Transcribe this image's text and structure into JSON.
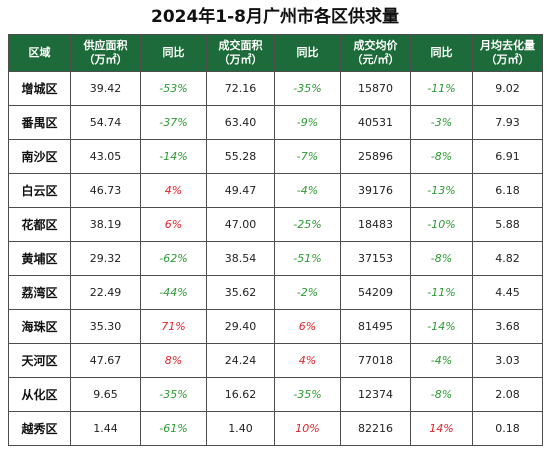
{
  "title": "2024年1-8月广州市各区供求量",
  "headers": [
    {
      "line1": "区域",
      "line2": ""
    },
    {
      "line1": "供应面积",
      "line2": "（万㎡）"
    },
    {
      "line1": "同比",
      "line2": ""
    },
    {
      "line1": "成交面积",
      "line2": "（万㎡）"
    },
    {
      "line1": "同比",
      "line2": ""
    },
    {
      "line1": "成交均价",
      "line2": "（元/㎡）"
    },
    {
      "line1": "同比",
      "line2": ""
    },
    {
      "line1": "月均去化量",
      "line2": "（万㎡）"
    }
  ],
  "rows": [
    {
      "region": "增城区",
      "supply": "39.42",
      "supply_yoy": "-53%",
      "deal": "72.16",
      "deal_yoy": "-35%",
      "price": "15870",
      "price_yoy": "-11%",
      "monthly": "9.02"
    },
    {
      "region": "番禺区",
      "supply": "54.74",
      "supply_yoy": "-37%",
      "deal": "63.40",
      "deal_yoy": "-9%",
      "price": "40531",
      "price_yoy": "-3%",
      "monthly": "7.93"
    },
    {
      "region": "南沙区",
      "supply": "43.05",
      "supply_yoy": "-14%",
      "deal": "55.28",
      "deal_yoy": "-7%",
      "price": "25896",
      "price_yoy": "-8%",
      "monthly": "6.91"
    },
    {
      "region": "白云区",
      "supply": "46.73",
      "supply_yoy": "4%",
      "deal": "49.47",
      "deal_yoy": "-4%",
      "price": "39176",
      "price_yoy": "-13%",
      "monthly": "6.18"
    },
    {
      "region": "花都区",
      "supply": "38.19",
      "supply_yoy": "6%",
      "deal": "47.00",
      "deal_yoy": "-25%",
      "price": "18483",
      "price_yoy": "-10%",
      "monthly": "5.88"
    },
    {
      "region": "黄埔区",
      "supply": "29.32",
      "supply_yoy": "-62%",
      "deal": "38.54",
      "deal_yoy": "-51%",
      "price": "37153",
      "price_yoy": "-8%",
      "monthly": "4.82"
    },
    {
      "region": "荔湾区",
      "supply": "22.49",
      "supply_yoy": "-44%",
      "deal": "35.62",
      "deal_yoy": "-2%",
      "price": "54209",
      "price_yoy": "-11%",
      "monthly": "4.45"
    },
    {
      "region": "海珠区",
      "supply": "35.30",
      "supply_yoy": "71%",
      "deal": "29.40",
      "deal_yoy": "6%",
      "price": "81495",
      "price_yoy": "-14%",
      "monthly": "3.68"
    },
    {
      "region": "天河区",
      "supply": "47.67",
      "supply_yoy": "8%",
      "deal": "24.24",
      "deal_yoy": "4%",
      "price": "77018",
      "price_yoy": "-4%",
      "monthly": "3.03"
    },
    {
      "region": "从化区",
      "supply": "9.65",
      "supply_yoy": "-35%",
      "deal": "16.62",
      "deal_yoy": "-35%",
      "price": "12374",
      "price_yoy": "-8%",
      "monthly": "2.08"
    },
    {
      "region": "越秀区",
      "supply": "1.44",
      "supply_yoy": "-61%",
      "deal": "1.40",
      "deal_yoy": "10%",
      "price": "82216",
      "price_yoy": "14%",
      "monthly": "0.18"
    }
  ],
  "colors": {
    "header_bg": "#1d6b3a",
    "negative": "#2e9a34",
    "positive": "#e3242b"
  }
}
